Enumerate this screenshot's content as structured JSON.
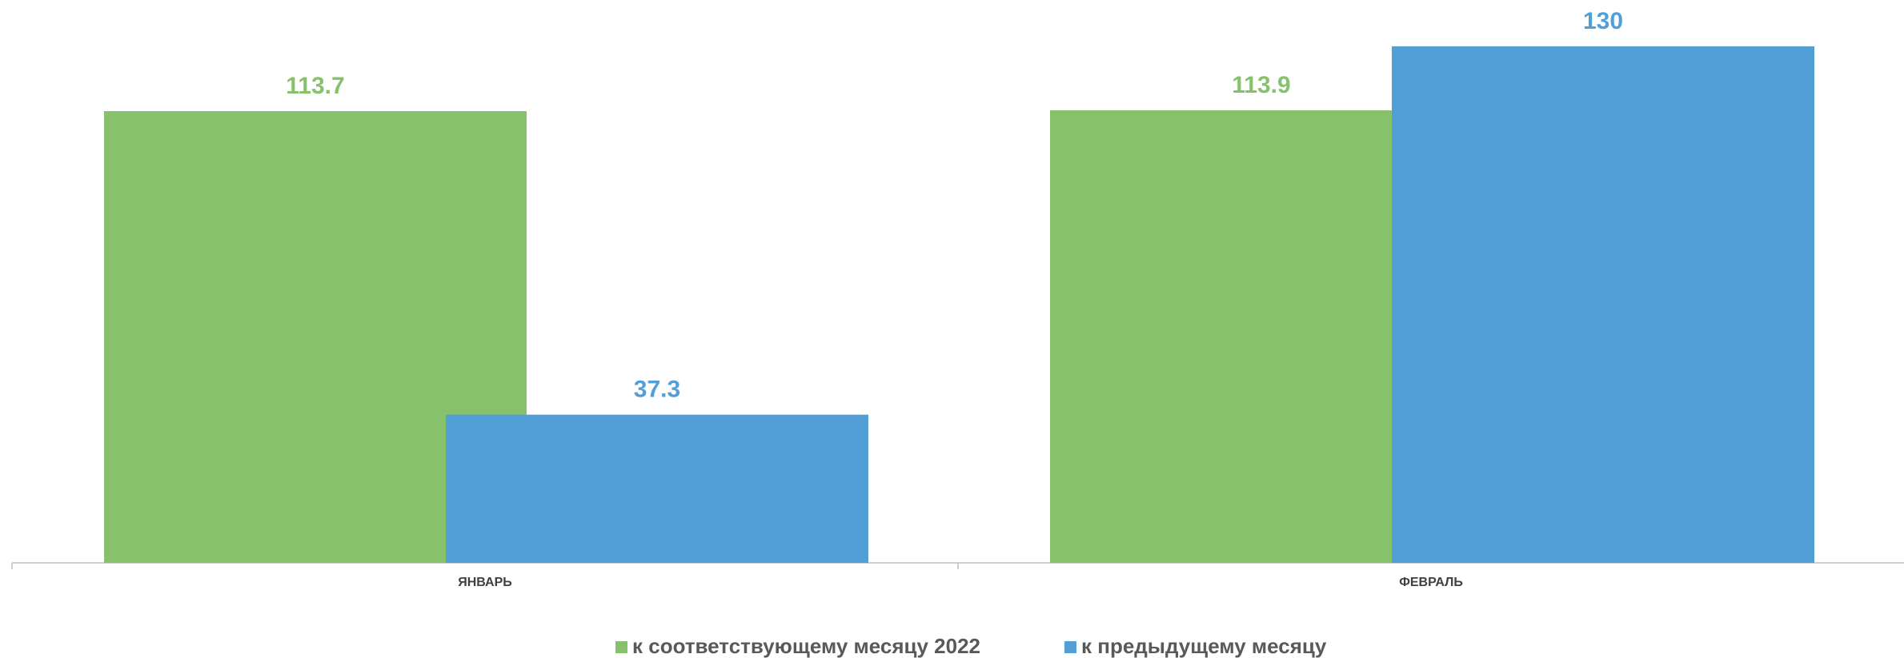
{
  "chart_data": {
    "type": "bar",
    "categories": [
      "ЯНВАРЬ",
      "ФЕВРАЛЬ"
    ],
    "series": [
      {
        "name": "к соответствующему месяцу 2022",
        "color": "#88c16c",
        "values": [
          113.7,
          113.9
        ]
      },
      {
        "name": "к предыдущему месяцу",
        "color": "#519fd6",
        "values": [
          37.3,
          130
        ]
      }
    ],
    "legend": "bottom"
  }
}
